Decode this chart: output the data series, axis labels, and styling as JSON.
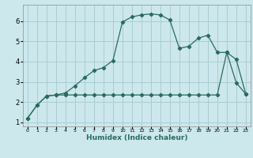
{
  "xlabel": "Humidex (Indice chaleur)",
  "background_color": "#cce8ec",
  "grid_color": "#aaccd4",
  "line_color": "#2a6b60",
  "xlim": [
    -0.5,
    23.5
  ],
  "ylim": [
    0.8,
    6.8
  ],
  "xticks": [
    0,
    1,
    2,
    3,
    4,
    5,
    6,
    7,
    8,
    9,
    10,
    11,
    12,
    13,
    14,
    15,
    16,
    17,
    18,
    19,
    20,
    21,
    22,
    23
  ],
  "yticks": [
    1,
    2,
    3,
    4,
    5,
    6
  ],
  "curve_upper_x": [
    0,
    1,
    2,
    3,
    4,
    5,
    6,
    7,
    8,
    9,
    10,
    11,
    12,
    13,
    14,
    15,
    16,
    17,
    18,
    19,
    20,
    21,
    22,
    23
  ],
  "curve_upper_y": [
    1.2,
    1.85,
    2.3,
    2.35,
    2.45,
    2.8,
    3.2,
    3.55,
    3.7,
    4.05,
    5.95,
    6.2,
    6.3,
    6.35,
    6.3,
    6.05,
    4.65,
    4.75,
    5.15,
    5.3,
    4.45,
    4.45,
    2.95,
    2.4
  ],
  "curve_lower_x": [
    0,
    1,
    2,
    3,
    4,
    5,
    6,
    7,
    8,
    9,
    10,
    11,
    12,
    13,
    14,
    15,
    16,
    17,
    18,
    19,
    20,
    21,
    22,
    23
  ],
  "curve_lower_y": [
    1.2,
    1.85,
    2.3,
    2.35,
    2.35,
    2.35,
    2.35,
    2.35,
    2.35,
    2.35,
    2.35,
    2.35,
    2.35,
    2.35,
    2.35,
    2.35,
    2.35,
    2.35,
    2.35,
    2.35,
    2.35,
    4.45,
    4.1,
    2.4
  ]
}
